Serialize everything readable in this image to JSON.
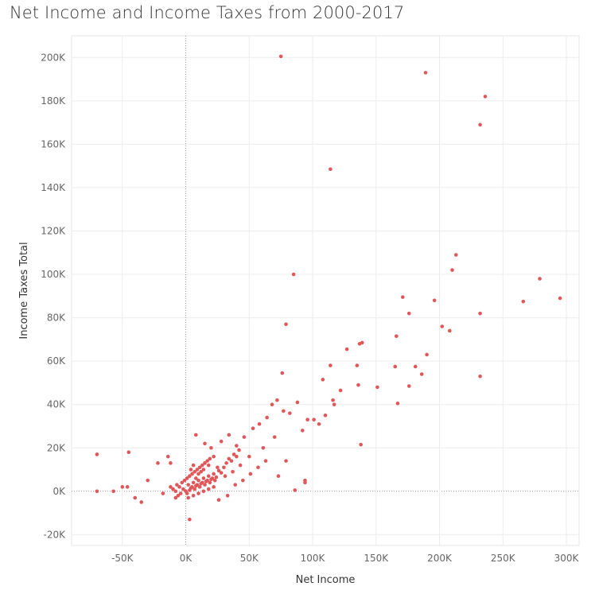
{
  "chart_data": {
    "type": "scatter",
    "title": "Net Income and Income Taxes from 2000-2017",
    "xlabel": "Net Income",
    "ylabel": "Income Taxes Total",
    "xlim": [
      -90000,
      310000
    ],
    "ylim": [
      -25000,
      210000
    ],
    "x_ticks": [
      -50000,
      0,
      50000,
      100000,
      150000,
      200000,
      250000,
      300000
    ],
    "x_tick_labels": [
      "-50K",
      "0K",
      "50K",
      "100K",
      "150K",
      "200K",
      "250K",
      "300K"
    ],
    "y_ticks": [
      -20000,
      0,
      20000,
      40000,
      60000,
      80000,
      100000,
      120000,
      140000,
      160000,
      180000,
      200000
    ],
    "y_tick_labels": [
      "-20K",
      "0K",
      "20K",
      "40K",
      "60K",
      "80K",
      "100K",
      "120K",
      "140K",
      "160K",
      "180K",
      "200K"
    ],
    "grid": true,
    "color": "#e15759",
    "series": [
      {
        "points": [
          [
            75000,
            200500
          ],
          [
            189000,
            193000
          ],
          [
            236000,
            182000
          ],
          [
            232000,
            169000
          ],
          [
            114000,
            148500
          ],
          [
            213000,
            109000
          ],
          [
            210000,
            102000
          ],
          [
            85000,
            100000
          ],
          [
            279000,
            98000
          ],
          [
            295000,
            89000
          ],
          [
            171000,
            89500
          ],
          [
            196000,
            88000
          ],
          [
            266000,
            87500
          ],
          [
            176000,
            82000
          ],
          [
            232000,
            82000
          ],
          [
            79000,
            77000
          ],
          [
            202000,
            76000
          ],
          [
            208000,
            74000
          ],
          [
            166000,
            71500
          ],
          [
            139000,
            68500
          ],
          [
            137000,
            68000
          ],
          [
            127000,
            65500
          ],
          [
            190000,
            63000
          ],
          [
            76000,
            54500
          ],
          [
            114000,
            58000
          ],
          [
            135000,
            58000
          ],
          [
            165000,
            57500
          ],
          [
            181000,
            57500
          ],
          [
            186000,
            54000
          ],
          [
            232000,
            53000
          ],
          [
            108000,
            51500
          ],
          [
            136000,
            49000
          ],
          [
            151000,
            48000
          ],
          [
            176000,
            48500
          ],
          [
            122000,
            46500
          ],
          [
            116000,
            42000
          ],
          [
            117000,
            40000
          ],
          [
            167000,
            40500
          ],
          [
            110000,
            35000
          ],
          [
            138000,
            21500
          ],
          [
            94000,
            5000
          ],
          [
            94000,
            4000
          ],
          [
            86000,
            500
          ],
          [
            -70000,
            17000
          ],
          [
            -70000,
            0
          ],
          [
            -45000,
            18000
          ],
          [
            -57000,
            0
          ],
          [
            -50000,
            2000
          ],
          [
            -46000,
            2000
          ],
          [
            -40000,
            -3000
          ],
          [
            -35000,
            -5000
          ],
          [
            -30000,
            5000
          ],
          [
            -22000,
            13000
          ],
          [
            -14000,
            16000
          ],
          [
            -12000,
            13000
          ],
          [
            -18000,
            -1000
          ],
          [
            -8000,
            -3000
          ],
          [
            3000,
            -13000
          ],
          [
            8000,
            26000
          ],
          [
            15000,
            22000
          ],
          [
            20000,
            20000
          ],
          [
            28000,
            23000
          ],
          [
            34000,
            26000
          ],
          [
            40000,
            21000
          ],
          [
            46000,
            25000
          ],
          [
            53000,
            29000
          ],
          [
            58000,
            31000
          ],
          [
            64000,
            34000
          ],
          [
            68000,
            40000
          ],
          [
            72000,
            42000
          ],
          [
            77000,
            37000
          ],
          [
            82000,
            36000
          ],
          [
            88000,
            41000
          ],
          [
            92000,
            28000
          ],
          [
            96000,
            33000
          ],
          [
            101000,
            33000
          ],
          [
            105000,
            31000
          ],
          [
            63000,
            14000
          ],
          [
            57000,
            11000
          ],
          [
            51000,
            8000
          ],
          [
            45000,
            5000
          ],
          [
            39000,
            3000
          ],
          [
            33000,
            -2000
          ],
          [
            26000,
            -4000
          ],
          [
            73000,
            7000
          ],
          [
            79000,
            14000
          ],
          [
            70000,
            25000
          ],
          [
            61000,
            20000
          ],
          [
            50000,
            16000
          ],
          [
            43000,
            12000
          ],
          [
            37000,
            9000
          ],
          [
            31000,
            7000
          ],
          [
            25000,
            11000
          ],
          [
            22000,
            16000
          ],
          [
            18000,
            12000
          ]
        ],
        "cluster": [
          [
            -5000,
            2000
          ],
          [
            -2000,
            1000
          ],
          [
            0,
            0
          ],
          [
            2000,
            3000
          ],
          [
            4000,
            1500
          ],
          [
            6000,
            4000
          ],
          [
            8000,
            2500
          ],
          [
            10000,
            5000
          ],
          [
            12000,
            3500
          ],
          [
            14000,
            6000
          ],
          [
            16000,
            4500
          ],
          [
            18000,
            7000
          ],
          [
            20000,
            5500
          ],
          [
            22000,
            8000
          ],
          [
            24000,
            6500
          ],
          [
            26000,
            9500
          ],
          [
            28000,
            8500
          ],
          [
            30000,
            11000
          ],
          [
            1000,
            -1000
          ],
          [
            3000,
            500
          ],
          [
            5000,
            2000
          ],
          [
            7000,
            1000
          ],
          [
            9000,
            3000
          ],
          [
            11000,
            2000
          ],
          [
            13000,
            4000
          ],
          [
            15000,
            3000
          ],
          [
            17000,
            5000
          ],
          [
            19000,
            4000
          ],
          [
            21000,
            6000
          ],
          [
            23000,
            5000
          ],
          [
            -3000,
            4000
          ],
          [
            -1000,
            5000
          ],
          [
            1000,
            6000
          ],
          [
            3000,
            7000
          ],
          [
            5000,
            8000
          ],
          [
            7000,
            9000
          ],
          [
            9000,
            10000
          ],
          [
            11000,
            11000
          ],
          [
            13000,
            12000
          ],
          [
            15000,
            13000
          ],
          [
            17000,
            14000
          ],
          [
            19000,
            15000
          ],
          [
            -8000,
            0
          ],
          [
            -6000,
            -2000
          ],
          [
            -4000,
            -1000
          ],
          [
            -10000,
            1000
          ],
          [
            -12000,
            2000
          ],
          [
            -7000,
            3000
          ],
          [
            32000,
            13000
          ],
          [
            34000,
            15000
          ],
          [
            36000,
            14000
          ],
          [
            38000,
            17000
          ],
          [
            40000,
            16000
          ],
          [
            42000,
            19000
          ],
          [
            4000,
            10000
          ],
          [
            6000,
            12000
          ],
          [
            8000,
            6000
          ],
          [
            10000,
            8000
          ],
          [
            12000,
            9000
          ],
          [
            14000,
            10000
          ],
          [
            2000,
            -3000
          ],
          [
            6000,
            -2000
          ],
          [
            10000,
            -1000
          ],
          [
            14000,
            0
          ],
          [
            18000,
            1000
          ],
          [
            22000,
            2000
          ]
        ]
      }
    ]
  }
}
